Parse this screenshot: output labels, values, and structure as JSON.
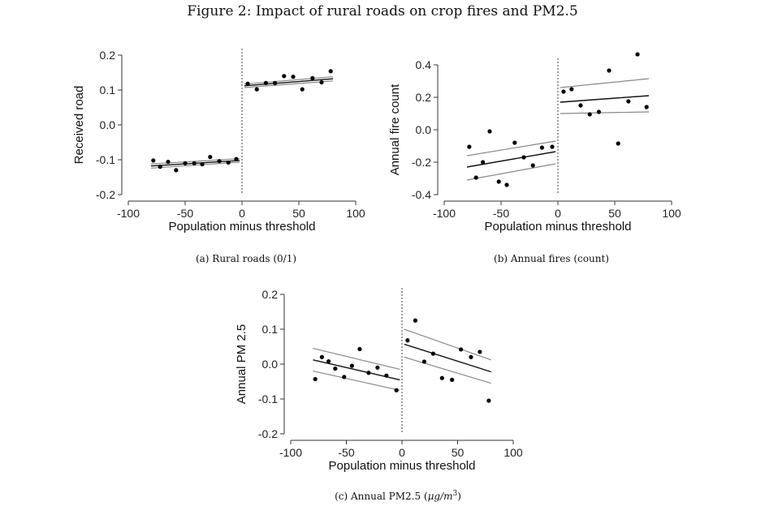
{
  "figure": {
    "title": "Figure 2: Impact of rural roads on crop fires and PM2.5"
  },
  "captions": {
    "a": "(a)  Rural roads (0/1)",
    "b": "(b)  Annual fires (count)",
    "c_prefix": "(c)  Annual PM2.5 (",
    "c_unit": "μg/m",
    "c_sup": "3",
    "c_suffix": ")"
  },
  "chart_data": [
    {
      "id": "a",
      "type": "scatter",
      "xlabel": "Population minus threshold",
      "ylabel": "Received road",
      "xlim": [
        -100,
        100
      ],
      "ylim": [
        -0.2,
        0.2
      ],
      "xticks": [
        -100,
        -50,
        0,
        50,
        100
      ],
      "yticks": [
        -0.2,
        -0.1,
        0.0,
        0.1,
        0.2
      ],
      "ytick_labels": [
        "-0.2",
        "-0.1",
        "0.0",
        "0.1",
        "0.2"
      ],
      "cutoff": 0,
      "points": [
        [
          -78,
          -0.102
        ],
        [
          -72,
          -0.12
        ],
        [
          -65,
          -0.106
        ],
        [
          -58,
          -0.13
        ],
        [
          -50,
          -0.11
        ],
        [
          -42,
          -0.11
        ],
        [
          -35,
          -0.113
        ],
        [
          -28,
          -0.092
        ],
        [
          -20,
          -0.104
        ],
        [
          -12,
          -0.108
        ],
        [
          -5,
          -0.098
        ],
        [
          5,
          0.118
        ],
        [
          13,
          0.102
        ],
        [
          21,
          0.12
        ],
        [
          29,
          0.12
        ],
        [
          37,
          0.14
        ],
        [
          45,
          0.138
        ],
        [
          53,
          0.102
        ],
        [
          62,
          0.134
        ],
        [
          70,
          0.122
        ],
        [
          78,
          0.154
        ]
      ],
      "fit_left": {
        "x": [
          -80,
          -2
        ],
        "y": [
          -0.118,
          -0.102
        ],
        "ci_lo": [
          -0.124,
          -0.107
        ],
        "ci_hi": [
          -0.112,
          -0.097
        ]
      },
      "fit_right": {
        "x": [
          2,
          80
        ],
        "y": [
          0.112,
          0.132
        ],
        "ci_lo": [
          0.107,
          0.126
        ],
        "ci_hi": [
          0.117,
          0.138
        ]
      }
    },
    {
      "id": "b",
      "type": "scatter",
      "xlabel": "Population minus threshold",
      "ylabel": "Annual fire count",
      "xlim": [
        -100,
        100
      ],
      "ylim": [
        -0.4,
        0.4
      ],
      "xticks": [
        -100,
        -50,
        0,
        50,
        100
      ],
      "yticks": [
        -0.4,
        -0.2,
        0.0,
        0.2,
        0.4
      ],
      "ytick_labels": [
        "-0.4",
        "-0.2",
        "0.0",
        "0.2",
        "0.4"
      ],
      "cutoff": 0,
      "points": [
        [
          -78,
          -0.105
        ],
        [
          -72,
          -0.295
        ],
        [
          -66,
          -0.2
        ],
        [
          -60,
          -0.01
        ],
        [
          -52,
          -0.32
        ],
        [
          -45,
          -0.34
        ],
        [
          -38,
          -0.08
        ],
        [
          -30,
          -0.17
        ],
        [
          -22,
          -0.22
        ],
        [
          -14,
          -0.11
        ],
        [
          -5,
          -0.105
        ],
        [
          5,
          0.235
        ],
        [
          12,
          0.25
        ],
        [
          20,
          0.15
        ],
        [
          28,
          0.095
        ],
        [
          36,
          0.11
        ],
        [
          45,
          0.365
        ],
        [
          53,
          -0.085
        ],
        [
          62,
          0.175
        ],
        [
          70,
          0.465
        ],
        [
          78,
          0.14
        ]
      ],
      "fit_left": {
        "x": [
          -80,
          -2
        ],
        "y": [
          -0.23,
          -0.135
        ],
        "ci_lo": [
          -0.31,
          -0.21
        ],
        "ci_hi": [
          -0.16,
          -0.07
        ]
      },
      "fit_right": {
        "x": [
          2,
          80
        ],
        "y": [
          0.17,
          0.21
        ],
        "ci_lo": [
          0.1,
          0.11
        ],
        "ci_hi": [
          0.26,
          0.315
        ]
      }
    },
    {
      "id": "c",
      "type": "scatter",
      "xlabel": "Population minus threshold",
      "ylabel": "Annual PM 2.5",
      "xlim": [
        -100,
        100
      ],
      "ylim": [
        -0.2,
        0.2
      ],
      "xticks": [
        -100,
        -50,
        0,
        50,
        100
      ],
      "yticks": [
        -0.2,
        -0.1,
        0.0,
        0.1,
        0.2
      ],
      "ytick_labels": [
        "-0.2",
        "-0.1",
        "0.0",
        "0.1",
        "0.2"
      ],
      "cutoff": 0,
      "points": [
        [
          -78,
          -0.043
        ],
        [
          -72,
          0.02
        ],
        [
          -66,
          0.008
        ],
        [
          -60,
          -0.013
        ],
        [
          -52,
          -0.037
        ],
        [
          -45,
          -0.005
        ],
        [
          -38,
          0.043
        ],
        [
          -30,
          -0.025
        ],
        [
          -22,
          -0.01
        ],
        [
          -14,
          -0.033
        ],
        [
          -5,
          -0.075
        ],
        [
          5,
          0.068
        ],
        [
          12,
          0.125
        ],
        [
          20,
          0.007
        ],
        [
          28,
          0.03
        ],
        [
          36,
          -0.04
        ],
        [
          45,
          -0.045
        ],
        [
          53,
          0.042
        ],
        [
          62,
          0.02
        ],
        [
          70,
          0.035
        ],
        [
          78,
          -0.105
        ]
      ],
      "fit_left": {
        "x": [
          -80,
          -2
        ],
        "y": [
          0.012,
          -0.045
        ],
        "ci_lo": [
          -0.02,
          -0.075
        ],
        "ci_hi": [
          0.045,
          -0.015
        ]
      },
      "fit_right": {
        "x": [
          2,
          80
        ],
        "y": [
          0.057,
          -0.022
        ],
        "ci_lo": [
          0.02,
          -0.055
        ],
        "ci_hi": [
          0.1,
          0.012
        ]
      }
    }
  ]
}
